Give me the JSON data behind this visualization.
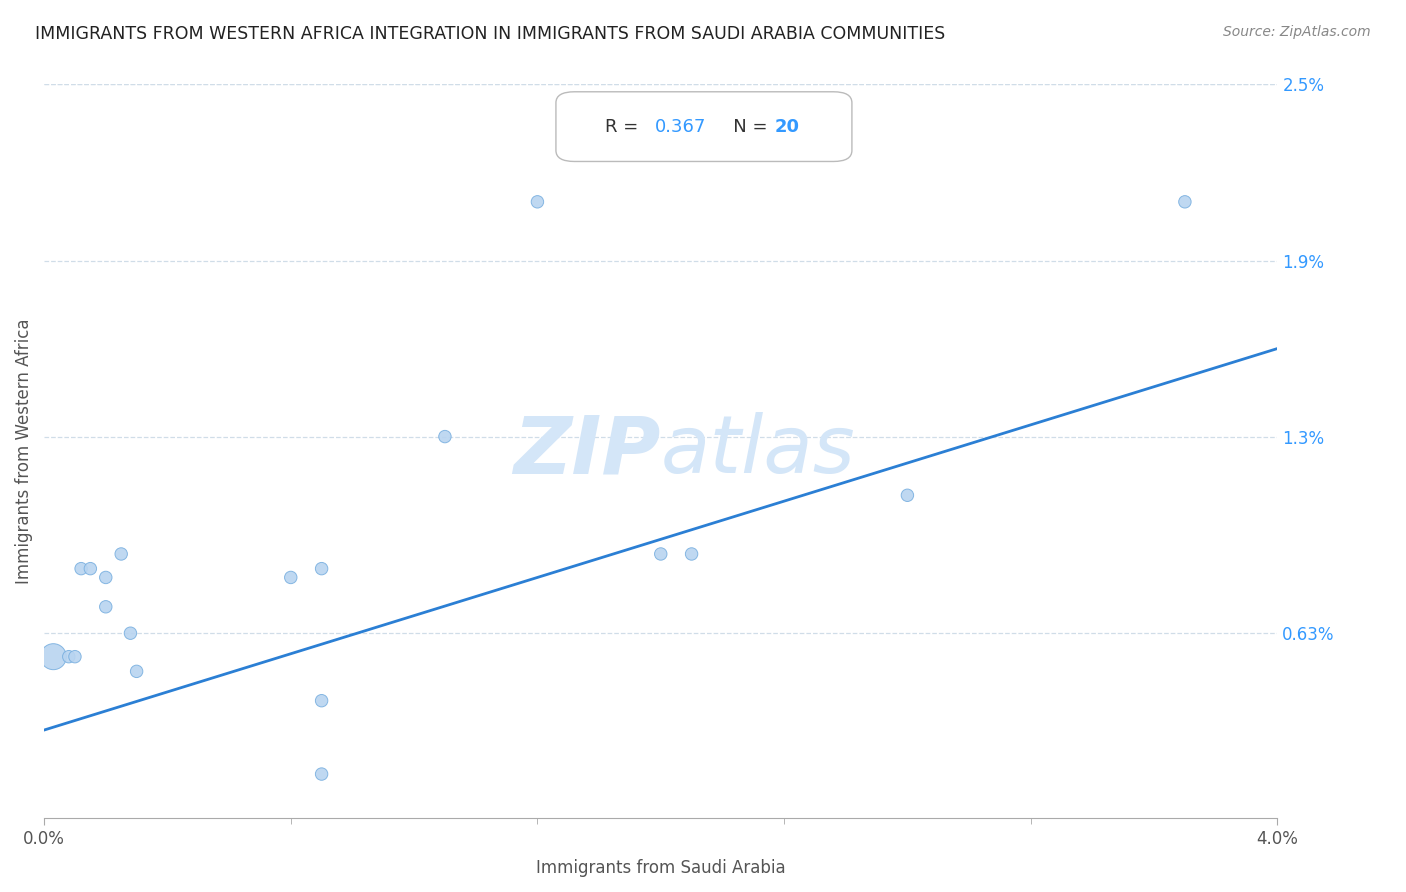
{
  "title": "IMMIGRANTS FROM WESTERN AFRICA INTEGRATION IN IMMIGRANTS FROM SAUDI ARABIA COMMUNITIES",
  "source": "Source: ZipAtlas.com",
  "xlabel": "Immigrants from Saudi Arabia",
  "ylabel": "Immigrants from Western Africa",
  "R": 0.367,
  "N": 20,
  "xlim": [
    0.0,
    0.04
  ],
  "ylim": [
    0.0,
    0.025
  ],
  "ytick_labels_right": [
    "2.5%",
    "1.9%",
    "1.3%",
    "0.63%"
  ],
  "ytick_vals_right": [
    0.025,
    0.019,
    0.013,
    0.0063
  ],
  "scatter_x": [
    0.0003,
    0.0008,
    0.001,
    0.0012,
    0.0015,
    0.002,
    0.002,
    0.0025,
    0.0028,
    0.003,
    0.008,
    0.009,
    0.009,
    0.009,
    0.013,
    0.016,
    0.02,
    0.021,
    0.028,
    0.037
  ],
  "scatter_y": [
    0.0055,
    0.0055,
    0.0055,
    0.0085,
    0.0085,
    0.0072,
    0.0082,
    0.009,
    0.0063,
    0.005,
    0.0082,
    0.0085,
    0.0015,
    0.004,
    0.013,
    0.021,
    0.009,
    0.009,
    0.011,
    0.021
  ],
  "dot_sizes": [
    350,
    80,
    80,
    80,
    80,
    80,
    80,
    80,
    80,
    80,
    80,
    80,
    80,
    80,
    80,
    80,
    80,
    80,
    80,
    80
  ],
  "line_start_x": 0.0,
  "line_start_y": 0.003,
  "line_end_x": 0.04,
  "line_end_y": 0.016,
  "scatter_color": "#b8d4f0",
  "scatter_edge_color": "#7ab0e0",
  "line_color": "#2b7fd4",
  "grid_color": "#d0dde8",
  "background_color": "#ffffff",
  "title_color": "#222222",
  "axis_label_color": "#555555",
  "right_tick_color": "#3399ff",
  "watermark_color": "#d4e6f8",
  "R_label_color": "#333333",
  "N_label_color": "#3399ff"
}
